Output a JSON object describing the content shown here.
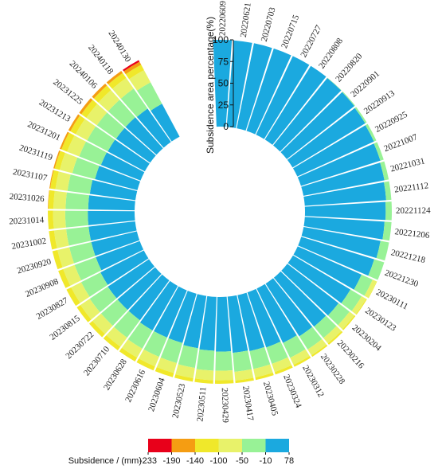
{
  "chart_data": {
    "type": "radial-stacked-bar",
    "dates": [
      "20220609",
      "20220621",
      "20220703",
      "20220715",
      "20220727",
      "20220808",
      "20220820",
      "20220901",
      "20220913",
      "20220925",
      "20221007",
      "20221031",
      "20221112",
      "20221124",
      "20221206",
      "20221218",
      "20221230",
      "20230111",
      "20230123",
      "20230204",
      "20230216",
      "20230228",
      "20230312",
      "20230324",
      "20230405",
      "20230417",
      "20230429",
      "20230511",
      "20230523",
      "20230604",
      "20230616",
      "20230628",
      "20230710",
      "20230722",
      "20230815",
      "20230827",
      "20230908",
      "20230920",
      "20231002",
      "20231014",
      "20231026",
      "20231107",
      "20231119",
      "20231201",
      "20231213",
      "20231225",
      "20240106",
      "20240118",
      "20240130"
    ],
    "classes": [
      "-233 ~ -190",
      "-190 ~ -140",
      "-140 ~ -100",
      "-100 ~ -50",
      "-50 ~ -10",
      "-10 ~ 78"
    ],
    "colors": [
      "#e8001a",
      "#f59d12",
      "#f0e82a",
      "#e8f26a",
      "#98f296",
      "#1ba9df"
    ],
    "series": [
      {
        "class_index": 0,
        "values": [
          0,
          0,
          0,
          0,
          0,
          0,
          0,
          0,
          0,
          0,
          0,
          0,
          0,
          0,
          0,
          0,
          0,
          0,
          0,
          0,
          0,
          0,
          0,
          0,
          0,
          0,
          0,
          0,
          0,
          0,
          0,
          0,
          0,
          0,
          0,
          0,
          0,
          0,
          0,
          0,
          0,
          0,
          0,
          0,
          0,
          0,
          0,
          0,
          2
        ]
      },
      {
        "class_index": 1,
        "values": [
          0,
          0,
          0,
          0,
          0,
          0,
          0,
          0,
          0,
          0,
          0,
          0,
          0,
          0,
          0,
          0,
          0,
          0,
          0,
          0,
          0,
          0,
          0,
          0,
          0,
          0,
          0,
          0,
          0,
          0,
          0,
          0,
          0,
          0,
          0,
          0,
          0,
          0,
          0,
          0,
          0.5,
          1,
          1.5,
          2,
          2.5,
          3,
          3,
          3,
          4
        ]
      },
      {
        "class_index": 2,
        "values": [
          0,
          0,
          0,
          0,
          0,
          0,
          0,
          0,
          0,
          0,
          0,
          0,
          0,
          0,
          0,
          0,
          0,
          0.5,
          1,
          1.5,
          2,
          2,
          2.5,
          3,
          3,
          3,
          4,
          4,
          4,
          5,
          5,
          5,
          5,
          5,
          5,
          6,
          6,
          6,
          6,
          6,
          6,
          6,
          6,
          7,
          7,
          7,
          7,
          7,
          7
        ]
      },
      {
        "class_index": 3,
        "values": [
          0,
          0,
          0,
          0,
          0,
          0,
          0,
          0,
          0,
          0,
          0,
          0,
          0,
          0,
          0,
          0,
          0,
          5,
          6,
          7,
          8,
          8,
          9,
          10,
          10,
          10,
          11,
          11,
          12,
          12,
          12,
          12,
          13,
          13,
          13,
          13,
          14,
          14,
          14,
          14,
          14,
          14,
          15,
          15,
          15,
          15,
          15,
          15,
          16
        ]
      },
      {
        "class_index": 4,
        "values": [
          0,
          0,
          0,
          0,
          0,
          0,
          0.5,
          1,
          2,
          3,
          4,
          5,
          6,
          7,
          8,
          10,
          12,
          14,
          15,
          16,
          17,
          18,
          19,
          20,
          21,
          22,
          22,
          23,
          23,
          24,
          24,
          24,
          25,
          25,
          25,
          25,
          26,
          26,
          26,
          26,
          26,
          26,
          27,
          27,
          27,
          27,
          27,
          28,
          28
        ]
      },
      {
        "class_index": 5,
        "values": [
          100,
          100,
          100,
          100,
          100,
          100,
          99.5,
          99,
          98,
          97,
          96,
          95,
          94,
          93,
          92,
          90,
          88,
          80.5,
          77,
          74.5,
          73,
          72,
          69.5,
          67,
          66,
          65,
          63,
          62,
          61,
          59,
          59,
          59,
          57,
          57,
          57,
          56,
          54,
          54,
          54,
          54,
          53.5,
          53,
          50.5,
          49,
          48.5,
          48,
          48,
          47,
          43
        ]
      }
    ],
    "radial_axis": {
      "title": "Subsidence area percentage(%)",
      "ticks": [
        0,
        25,
        50,
        75,
        100
      ],
      "range": [
        0,
        100
      ]
    },
    "legend": {
      "title": "Subsidence / (mm)",
      "tick_labels": [
        "-233",
        "-190",
        "-140",
        "-100",
        "-50",
        "-10",
        "78"
      ]
    }
  }
}
